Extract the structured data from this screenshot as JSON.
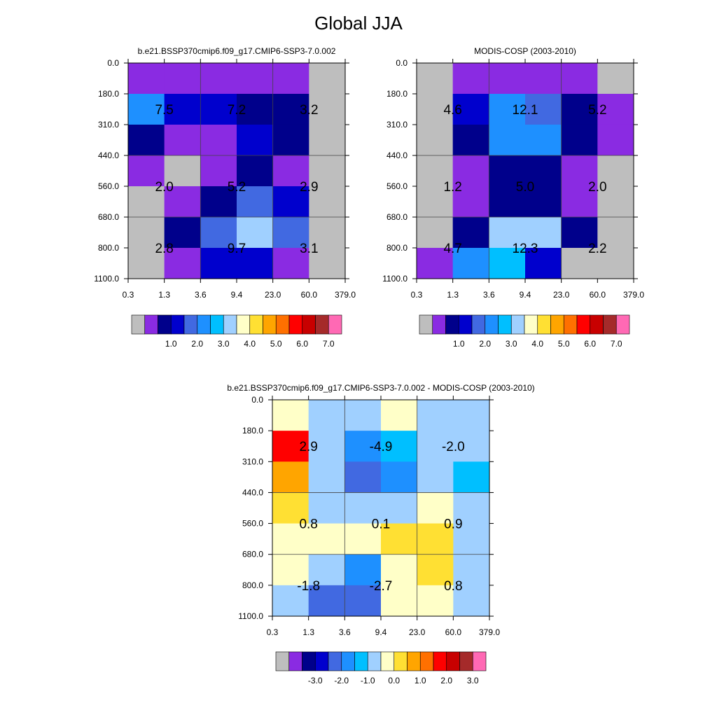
{
  "figure_title": "Global JJA",
  "colors": {
    "gray": "#bebebe",
    "levels_abs": [
      "#bebebe",
      "#8a2be2",
      "#00008b",
      "#0000cd",
      "#4169e1",
      "#1e90ff",
      "#00bfff",
      "#a0d0ff",
      "#ffffc8",
      "#ffe033",
      "#ffa500",
      "#ff7000",
      "#ff0000",
      "#c80000",
      "#a52a2a",
      "#ff69b4"
    ],
    "levels_diff": [
      "#bebebe",
      "#8a2be2",
      "#00008b",
      "#0000cd",
      "#4169e1",
      "#1e90ff",
      "#00bfff",
      "#a0d0ff",
      "#ffffc8",
      "#ffe033",
      "#ffa500",
      "#ff7000",
      "#ff0000",
      "#c80000",
      "#a52a2a",
      "#ff69b4"
    ]
  },
  "chart_data": [
    {
      "type": "heatmap",
      "title": "b.e21.BSSP370cmip6.f09_g17.CMIP6-SSP3-7.0.002",
      "x_tick_labels": [
        "0.3",
        "1.3",
        "3.6",
        "9.4",
        "23.0",
        "60.0",
        "379.0"
      ],
      "y_tick_labels": [
        "0.0",
        "180.0",
        "310.0",
        "440.0",
        "560.0",
        "680.0",
        "800.0",
        "1100.0"
      ],
      "grid_rows_top_to_bottom_color_index": [
        [
          1,
          1,
          1,
          1,
          1,
          0
        ],
        [
          5,
          3,
          3,
          2,
          2,
          0
        ],
        [
          2,
          1,
          1,
          3,
          2,
          0
        ],
        [
          1,
          0,
          1,
          2,
          1,
          0
        ],
        [
          0,
          1,
          2,
          4,
          3,
          0
        ],
        [
          0,
          2,
          4,
          7,
          4,
          0
        ],
        [
          0,
          1,
          3,
          3,
          1,
          0
        ]
      ],
      "annotations": [
        {
          "text": "7.5",
          "col_group": 0,
          "row_group": 0
        },
        {
          "text": "7.2",
          "col_group": 1,
          "row_group": 0
        },
        {
          "text": "3.2",
          "col_group": 2,
          "row_group": 0
        },
        {
          "text": "2.0",
          "col_group": 0,
          "row_group": 1
        },
        {
          "text": "5.2",
          "col_group": 1,
          "row_group": 1
        },
        {
          "text": "2.9",
          "col_group": 2,
          "row_group": 1
        },
        {
          "text": "2.8",
          "col_group": 0,
          "row_group": 2
        },
        {
          "text": "9.7",
          "col_group": 1,
          "row_group": 2
        },
        {
          "text": "3.1",
          "col_group": 2,
          "row_group": 2
        }
      ],
      "colorbar_labels": [
        "1.0",
        "2.0",
        "3.0",
        "4.0",
        "5.0",
        "6.0",
        "7.0"
      ],
      "colorbar_palette": "levels_abs"
    },
    {
      "type": "heatmap",
      "title": "MODIS-COSP (2003-2010)",
      "x_tick_labels": [
        "0.3",
        "1.3",
        "3.6",
        "9.4",
        "23.0",
        "60.0",
        "379.0"
      ],
      "y_tick_labels": [
        "0.0",
        "180.0",
        "310.0",
        "440.0",
        "560.0",
        "680.0",
        "800.0",
        "1100.0"
      ],
      "grid_rows_top_to_bottom_color_index": [
        [
          0,
          1,
          1,
          1,
          1,
          0
        ],
        [
          0,
          3,
          5,
          4,
          2,
          1
        ],
        [
          0,
          2,
          5,
          5,
          2,
          1
        ],
        [
          0,
          1,
          2,
          2,
          1,
          0
        ],
        [
          0,
          1,
          2,
          2,
          1,
          0
        ],
        [
          0,
          2,
          7,
          7,
          2,
          0
        ],
        [
          1,
          5,
          6,
          3,
          0,
          0
        ]
      ],
      "annotations": [
        {
          "text": "4.6",
          "col_group": 0,
          "row_group": 0
        },
        {
          "text": "12.1",
          "col_group": 1,
          "row_group": 0
        },
        {
          "text": "5.2",
          "col_group": 2,
          "row_group": 0
        },
        {
          "text": "1.2",
          "col_group": 0,
          "row_group": 1
        },
        {
          "text": "5.0",
          "col_group": 1,
          "row_group": 1
        },
        {
          "text": "2.0",
          "col_group": 2,
          "row_group": 1
        },
        {
          "text": "4.7",
          "col_group": 0,
          "row_group": 2
        },
        {
          "text": "12.3",
          "col_group": 1,
          "row_group": 2
        },
        {
          "text": "2.2",
          "col_group": 2,
          "row_group": 2
        }
      ],
      "colorbar_labels": [
        "1.0",
        "2.0",
        "3.0",
        "4.0",
        "5.0",
        "6.0",
        "7.0"
      ],
      "colorbar_palette": "levels_abs"
    },
    {
      "type": "heatmap",
      "title": "b.e21.BSSP370cmip6.f09_g17.CMIP6-SSP3-7.0.002 - MODIS-COSP (2003-2010)",
      "x_tick_labels": [
        "0.3",
        "1.3",
        "3.6",
        "9.4",
        "23.0",
        "60.0",
        "379.0"
      ],
      "y_tick_labels": [
        "0.0",
        "180.0",
        "310.0",
        "440.0",
        "560.0",
        "680.0",
        "800.0",
        "1100.0"
      ],
      "grid_rows_top_to_bottom_color_index": [
        [
          8,
          7,
          7,
          8,
          7,
          7
        ],
        [
          12,
          7,
          5,
          6,
          7,
          7
        ],
        [
          10,
          7,
          4,
          5,
          7,
          6
        ],
        [
          9,
          7,
          7,
          7,
          8,
          7
        ],
        [
          8,
          8,
          8,
          9,
          9,
          7
        ],
        [
          8,
          7,
          5,
          8,
          9,
          7
        ],
        [
          7,
          4,
          4,
          8,
          8,
          7
        ]
      ],
      "annotations": [
        {
          "text": "2.9",
          "col_group": 0,
          "row_group": 0
        },
        {
          "text": "-4.9",
          "col_group": 1,
          "row_group": 0
        },
        {
          "text": "-2.0",
          "col_group": 2,
          "row_group": 0
        },
        {
          "text": "0.8",
          "col_group": 0,
          "row_group": 1
        },
        {
          "text": "0.1",
          "col_group": 1,
          "row_group": 1
        },
        {
          "text": "0.9",
          "col_group": 2,
          "row_group": 1
        },
        {
          "text": "-1.8",
          "col_group": 0,
          "row_group": 2
        },
        {
          "text": "-2.7",
          "col_group": 1,
          "row_group": 2
        },
        {
          "text": "0.8",
          "col_group": 2,
          "row_group": 2
        }
      ],
      "colorbar_labels": [
        "-3.0",
        "-2.0",
        "-1.0",
        "0.0",
        "1.0",
        "2.0",
        "3.0"
      ],
      "colorbar_palette": "levels_diff"
    }
  ]
}
